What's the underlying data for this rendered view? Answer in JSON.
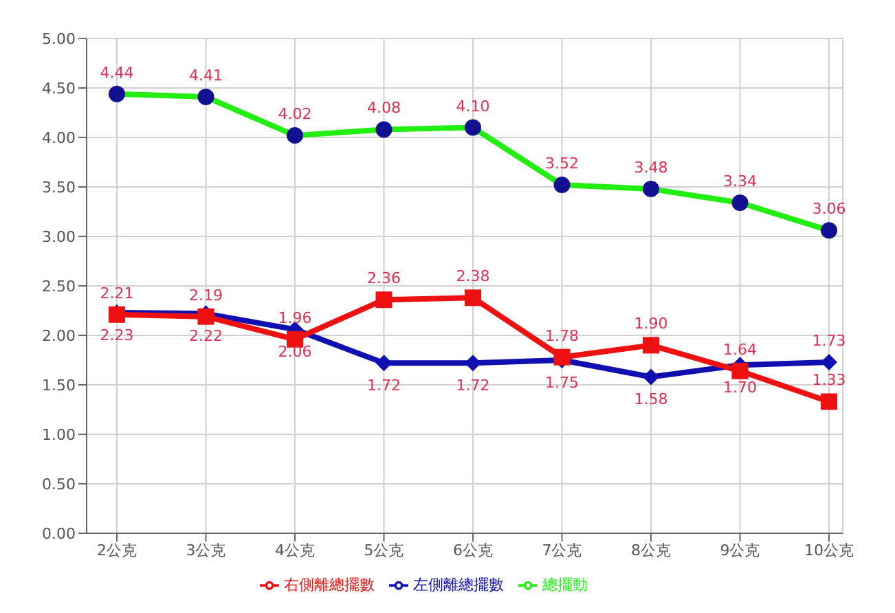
{
  "chart_data": {
    "type": "line",
    "categories": [
      "2公克",
      "3公克",
      "4公克",
      "5公克",
      "6公克",
      "7公克",
      "8公克",
      "9公克",
      "10公克"
    ],
    "series": [
      {
        "name": "左側離總擺數",
        "color": "#1010b0",
        "marker": "diamond",
        "values": [
          2.23,
          2.22,
          2.06,
          1.72,
          1.72,
          1.75,
          1.58,
          1.7,
          1.73
        ],
        "value_labels": [
          "2.23",
          "2.22",
          "2.06",
          "1.72",
          "1.72",
          "1.75",
          "1.58",
          "1.70",
          "1.73"
        ]
      },
      {
        "name": "右側離總擺數",
        "color": "#ee1111",
        "marker": "square",
        "values": [
          2.21,
          2.19,
          1.96,
          2.36,
          2.38,
          1.78,
          1.9,
          1.64,
          1.33
        ],
        "value_labels": [
          "2.21",
          "2.19",
          "1.96",
          "2.36",
          "2.38",
          "1.78",
          "1.90",
          "1.64",
          "1.33"
        ]
      },
      {
        "name": "總擺動",
        "color": "#22ee11",
        "marker": "circle",
        "values": [
          4.44,
          4.41,
          4.02,
          4.08,
          4.1,
          3.52,
          3.48,
          3.34,
          3.06
        ],
        "value_labels": [
          "4.44",
          "4.41",
          "4.02",
          "4.08",
          "4.10",
          "3.52",
          "3.48",
          "3.34",
          "3.06"
        ]
      }
    ],
    "ylim": [
      0,
      5
    ],
    "yticks": [
      {
        "value": 0,
        "label": "0.00"
      },
      {
        "value": 0.5,
        "label": "0.50"
      },
      {
        "value": 1,
        "label": "1.00"
      },
      {
        "value": 1.5,
        "label": "1.50"
      },
      {
        "value": 2,
        "label": "2.00"
      },
      {
        "value": 2.5,
        "label": "2.50"
      },
      {
        "value": 3,
        "label": "3.00"
      },
      {
        "value": 3.5,
        "label": "3.50"
      },
      {
        "value": 4,
        "label": "4.00"
      },
      {
        "value": 4.5,
        "label": "4.50"
      },
      {
        "value": 5,
        "label": "5.00"
      }
    ],
    "grid": true,
    "legend": "bottom"
  }
}
